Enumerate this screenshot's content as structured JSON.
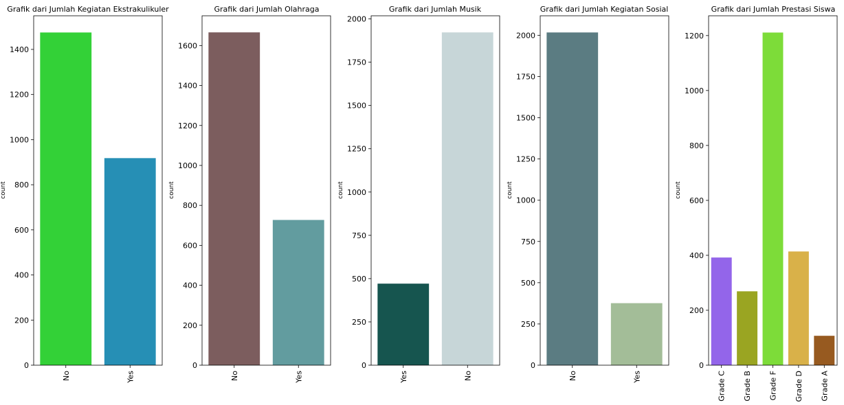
{
  "chart_data": [
    {
      "type": "bar",
      "title": "Grafik dari Jumlah Kegiatan Ekstrakulikuler",
      "xlabel": "",
      "ylabel": "count",
      "categories": [
        "No",
        "Yes"
      ],
      "values": [
        1475,
        918
      ],
      "colors": [
        "#33d137",
        "#268fb5"
      ],
      "ylim": [
        0,
        1549
      ],
      "yticks": [
        0,
        200,
        400,
        600,
        800,
        1000,
        1200,
        1400
      ],
      "grid": false
    },
    {
      "type": "bar",
      "title": "Grafik dari Jumlah Olahraga",
      "xlabel": "",
      "ylabel": "count",
      "categories": [
        "No",
        "Yes"
      ],
      "values": [
        1666,
        727
      ],
      "colors": [
        "#7c5d5e",
        "#629c9f"
      ],
      "ylim": [
        0,
        1749
      ],
      "yticks": [
        0,
        200,
        400,
        600,
        800,
        1000,
        1200,
        1400,
        1600
      ],
      "grid": false
    },
    {
      "type": "bar",
      "title": "Grafik dari Jumlah Musik",
      "xlabel": "",
      "ylabel": "count",
      "categories": [
        "Yes",
        "No"
      ],
      "values": [
        471,
        1922
      ],
      "colors": [
        "#16554f",
        "#c7d6d8"
      ],
      "ylim": [
        0,
        2018
      ],
      "yticks": [
        0,
        250,
        500,
        750,
        1000,
        1250,
        1500,
        1750,
        2000
      ],
      "grid": false
    },
    {
      "type": "bar",
      "title": "Grafik dari Jumlah Kegiatan Sosial",
      "xlabel": "",
      "ylabel": "count",
      "categories": [
        "No",
        "Yes"
      ],
      "values": [
        2017,
        376
      ],
      "colors": [
        "#5b7c82",
        "#a3bd98"
      ],
      "ylim": [
        0,
        2118
      ],
      "yticks": [
        0,
        250,
        500,
        750,
        1000,
        1250,
        1500,
        1750,
        2000
      ],
      "grid": false
    },
    {
      "type": "bar",
      "title": "Grafik dari Jumlah Prestasi Siswa",
      "xlabel": "",
      "ylabel": "count",
      "categories": [
        "Grade C",
        "Grade B",
        "Grade F",
        "Grade D",
        "Grade A"
      ],
      "values": [
        392,
        269,
        1211,
        414,
        107
      ],
      "colors": [
        "#9365ea",
        "#9aa522",
        "#7ddc39",
        "#d9b149",
        "#975a20"
      ],
      "ylim": [
        0,
        1272
      ],
      "yticks": [
        0,
        200,
        400,
        600,
        800,
        1000,
        1200
      ],
      "grid": false
    }
  ]
}
